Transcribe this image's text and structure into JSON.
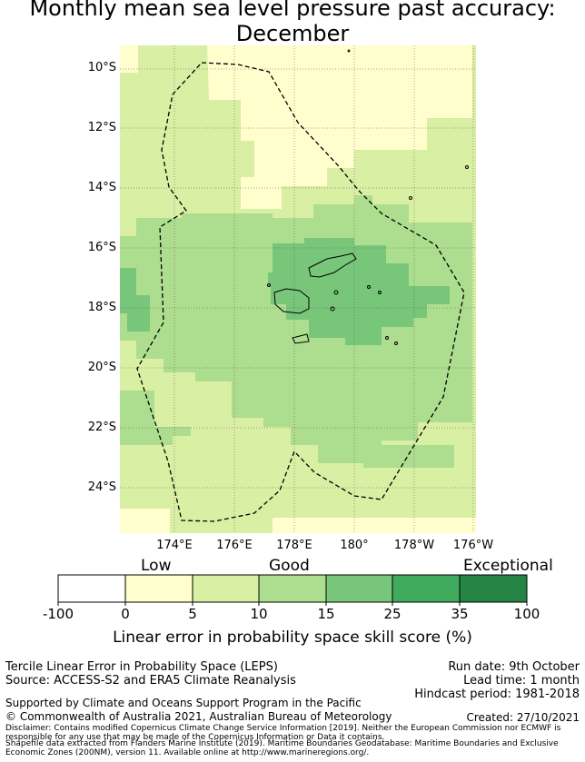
{
  "title": {
    "line1": "Monthly mean sea level pressure past accuracy:",
    "line2": "December"
  },
  "map": {
    "lat_labels": [
      "10°S",
      "12°S",
      "14°S",
      "16°S",
      "18°S",
      "20°S",
      "22°S",
      "24°S"
    ],
    "lon_labels": [
      "174°E",
      "176°E",
      "178°E",
      "180°",
      "178°W",
      "176°W"
    ],
    "boundary_style": "dashed",
    "colors": {
      "pale": "#fffecc",
      "light": "#d9efa3",
      "mid": "#addd8e",
      "strong": "#78c679",
      "land": "none"
    }
  },
  "colorbar": {
    "captions": {
      "low": "Low",
      "good": "Good",
      "exceptional": "Exceptional"
    },
    "ticks": [
      "-100",
      "0",
      "5",
      "10",
      "15",
      "25",
      "35",
      "100"
    ],
    "colors": [
      "#ffffff",
      "#fffecc",
      "#d9efa3",
      "#addd8e",
      "#78c679",
      "#41ab5d",
      "#238443"
    ],
    "label": "Linear error in probability space skill score (%)"
  },
  "footer": {
    "left1": "Tercile Linear Error in Probability Space (LEPS)",
    "left2": "Source: ACCESS-S2 and ERA5 Climate Reanalysis",
    "run_date": "Run date: 9th October",
    "lead_time": "Lead time: 1 month",
    "hindcast": "Hindcast period: 1981-2018",
    "supported": "Supported by Climate and Oceans Support Program in the Pacific",
    "copyright": "© Commonwealth of Australia 2021, Australian Bureau of Meteorology",
    "created": "Created: 27/10/2021",
    "disclaimer1": "Disclaimer: Contains modified Copernicus Climate Change Service Information [2019]. Neither the European Commission nor ECMWF is responsible for any use that may be made of the Copernicus Information or Data it contains.",
    "disclaimer2": "Shapefile data extracted from Flanders Marine Institute (2019). Maritime Boundaries Geodatabase: Maritime Boundaries and Exclusive Economic Zones (200NM), version 11. Available online at http://www.marineregions.org/."
  }
}
